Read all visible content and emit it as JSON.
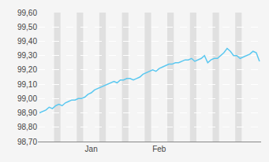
{
  "chart_data": {
    "type": "line",
    "x": [
      0,
      1,
      2,
      3,
      4,
      5,
      6,
      7,
      8,
      9,
      10,
      11,
      12,
      13,
      14,
      15,
      16,
      17,
      18,
      19,
      20,
      21,
      22,
      23,
      24,
      25,
      26,
      27,
      28,
      29,
      30,
      31,
      32,
      33,
      34,
      35,
      36,
      37,
      38,
      39,
      40,
      41,
      42,
      43,
      44,
      45,
      46,
      47,
      48,
      49,
      50,
      51,
      52,
      53,
      54,
      55,
      56,
      57,
      58,
      59,
      60,
      61,
      62,
      63,
      64,
      65,
      66,
      67,
      68
    ],
    "values": [
      98.9,
      98.91,
      98.92,
      98.94,
      98.93,
      98.95,
      98.96,
      98.95,
      98.97,
      98.98,
      98.99,
      98.99,
      99.0,
      99.0,
      99.01,
      99.03,
      99.04,
      99.06,
      99.07,
      99.08,
      99.09,
      99.1,
      99.11,
      99.12,
      99.11,
      99.13,
      99.13,
      99.14,
      99.14,
      99.13,
      99.14,
      99.15,
      99.17,
      99.18,
      99.19,
      99.2,
      99.19,
      99.21,
      99.22,
      99.23,
      99.24,
      99.24,
      99.25,
      99.25,
      99.26,
      99.27,
      99.27,
      99.28,
      99.26,
      99.27,
      99.28,
      99.3,
      99.25,
      99.27,
      99.28,
      99.28,
      99.3,
      99.32,
      99.35,
      99.33,
      99.3,
      99.3,
      99.28,
      99.29,
      99.3,
      99.31,
      99.33,
      99.32,
      99.26
    ],
    "color": "#5bc8f0",
    "background_color": "#f5f5f5",
    "weekend_color": "#e0e0e0",
    "weekend_bands": [
      {
        "start": 5,
        "end": 6
      },
      {
        "start": 12,
        "end": 13
      },
      {
        "start": 19,
        "end": 20
      },
      {
        "start": 26,
        "end": 27
      },
      {
        "start": 33,
        "end": 34
      },
      {
        "start": 40,
        "end": 41
      },
      {
        "start": 47,
        "end": 48
      },
      {
        "start": 54,
        "end": 55
      },
      {
        "start": 61,
        "end": 62
      }
    ],
    "xlim": [
      -0.5,
      68.5
    ],
    "xticks": [
      {
        "value": 16,
        "label": "Jan"
      },
      {
        "value": 37,
        "label": "Feb"
      }
    ],
    "ylim": [
      98.7,
      99.6
    ],
    "yticks": [
      {
        "value": 98.7,
        "label": "98,70"
      },
      {
        "value": 98.8,
        "label": "98,80"
      },
      {
        "value": 98.9,
        "label": "98,90"
      },
      {
        "value": 99.0,
        "label": "99,00"
      },
      {
        "value": 99.1,
        "label": "99,10"
      },
      {
        "value": 99.2,
        "label": "99,20"
      },
      {
        "value": 99.3,
        "label": "99,30"
      },
      {
        "value": 99.4,
        "label": "99,40"
      },
      {
        "value": 99.5,
        "label": "99,50"
      },
      {
        "value": 99.6,
        "label": "99,60"
      }
    ],
    "grid": true
  }
}
